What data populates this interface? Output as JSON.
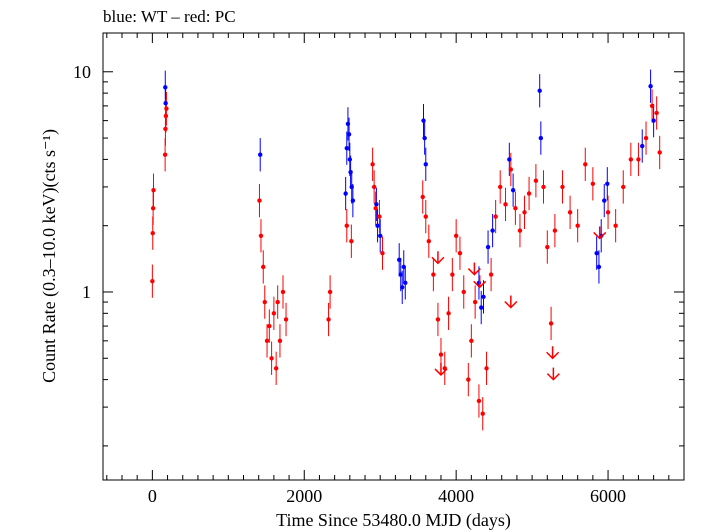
{
  "chart_data": {
    "type": "scatter",
    "title": "blue: WT – red: PC",
    "xlabel": "Time Since 53480.0 MJD (days)",
    "ylabel": "Count Rate (0.3–10.0 keV)(cts s⁻¹)",
    "y_scale": "log",
    "xlim": [
      -650,
      7000
    ],
    "ylim": [
      0.14,
      15
    ],
    "x_ticks": [
      0,
      2000,
      4000,
      6000
    ],
    "x_tick_labels": [
      "0",
      "2000",
      "4000",
      "6000"
    ],
    "y_ticks": [
      1,
      10
    ],
    "y_tick_labels": [
      "1",
      "10"
    ],
    "grid": false,
    "legend": "none",
    "colors": {
      "WT": "#0000ff",
      "PC": "#ff0000"
    },
    "series": [
      {
        "mode": "WT",
        "points": [
          [
            170,
            8.5
          ],
          [
            175,
            7.2
          ],
          [
            1420,
            4.2
          ],
          [
            2545,
            2.8
          ],
          [
            2560,
            4.5
          ],
          [
            2575,
            5.8
          ],
          [
            2590,
            5.2
          ],
          [
            2600,
            4.0
          ],
          [
            2610,
            3.5
          ],
          [
            2625,
            3.0
          ],
          [
            2640,
            2.6
          ],
          [
            2950,
            2.5
          ],
          [
            2965,
            2.0
          ],
          [
            3000,
            1.8
          ],
          [
            3250,
            1.4
          ],
          [
            3270,
            1.2
          ],
          [
            3290,
            1.05
          ],
          [
            3310,
            1.3
          ],
          [
            3330,
            1.1
          ],
          [
            3570,
            6.0
          ],
          [
            3585,
            5.0
          ],
          [
            3600,
            3.8
          ],
          [
            4300,
            1.1
          ],
          [
            4330,
            0.85
          ],
          [
            4360,
            0.95
          ],
          [
            4420,
            1.6
          ],
          [
            4480,
            1.9
          ],
          [
            4700,
            4.0
          ],
          [
            4750,
            2.9
          ],
          [
            5100,
            8.2
          ],
          [
            5115,
            5.0
          ],
          [
            5850,
            1.5
          ],
          [
            5880,
            1.3
          ],
          [
            5910,
            1.8
          ],
          [
            5950,
            2.6
          ],
          [
            5990,
            3.1
          ],
          [
            6450,
            4.6
          ],
          [
            6560,
            8.6
          ],
          [
            6600,
            6.0
          ]
        ]
      },
      {
        "mode": "PC",
        "points": [
          [
            0,
            1.12
          ],
          [
            5,
            1.85
          ],
          [
            10,
            2.4
          ],
          [
            15,
            2.9
          ],
          [
            168,
            4.2
          ],
          [
            172,
            5.5
          ],
          [
            178,
            6.3
          ],
          [
            185,
            6.8
          ],
          [
            1410,
            2.6
          ],
          [
            1430,
            1.8
          ],
          [
            1460,
            1.3
          ],
          [
            1480,
            0.9
          ],
          [
            1510,
            0.6
          ],
          [
            1540,
            0.7
          ],
          [
            1570,
            0.5
          ],
          [
            1600,
            0.8
          ],
          [
            1630,
            0.45
          ],
          [
            1650,
            0.9
          ],
          [
            1680,
            0.6
          ],
          [
            1720,
            1.0
          ],
          [
            1760,
            0.75
          ],
          [
            2320,
            0.75
          ],
          [
            2340,
            1.0
          ],
          [
            2560,
            2.0
          ],
          [
            2620,
            1.7
          ],
          [
            2900,
            3.8
          ],
          [
            2920,
            3.0
          ],
          [
            2940,
            2.4
          ],
          [
            2990,
            2.2
          ],
          [
            3030,
            1.5
          ],
          [
            3560,
            2.7
          ],
          [
            3600,
            2.2
          ],
          [
            3640,
            1.7
          ],
          [
            3700,
            1.2
          ],
          [
            3760,
            0.75
          ],
          [
            3800,
            0.52
          ],
          [
            3850,
            0.45
          ],
          [
            3900,
            0.8
          ],
          [
            3950,
            1.2
          ],
          [
            4000,
            1.8
          ],
          [
            4050,
            1.5
          ],
          [
            4100,
            1.0
          ],
          [
            4160,
            0.4
          ],
          [
            4200,
            0.6
          ],
          [
            4250,
            0.9
          ],
          [
            4300,
            0.32
          ],
          [
            4350,
            0.28
          ],
          [
            4400,
            0.45
          ],
          [
            4460,
            1.2
          ],
          [
            4520,
            2.2
          ],
          [
            4580,
            3.0
          ],
          [
            4650,
            2.5
          ],
          [
            4720,
            3.6
          ],
          [
            4780,
            2.4
          ],
          [
            4840,
            1.9
          ],
          [
            4900,
            2.3
          ],
          [
            4960,
            2.8
          ],
          [
            5050,
            3.2
          ],
          [
            5150,
            3.0
          ],
          [
            5200,
            1.6
          ],
          [
            5250,
            0.72
          ],
          [
            5300,
            1.9
          ],
          [
            5400,
            3.0
          ],
          [
            5500,
            2.3
          ],
          [
            5600,
            2.0
          ],
          [
            5700,
            3.8
          ],
          [
            5800,
            3.1
          ],
          [
            6000,
            2.3
          ],
          [
            6100,
            2.0
          ],
          [
            6200,
            3.0
          ],
          [
            6300,
            4.0
          ],
          [
            6400,
            4.0
          ],
          [
            6500,
            5.0
          ],
          [
            6580,
            7.0
          ],
          [
            6640,
            6.5
          ],
          [
            6680,
            4.3
          ]
        ]
      },
      {
        "mode": "PC upper limit",
        "points": [
          [
            3760,
            1.35
          ],
          [
            3800,
            0.42
          ],
          [
            4240,
            1.2
          ],
          [
            4310,
            1.05
          ],
          [
            4720,
            0.85
          ],
          [
            5270,
            0.5
          ],
          [
            5280,
            0.4
          ],
          [
            5890,
            1.75
          ]
        ]
      }
    ]
  }
}
